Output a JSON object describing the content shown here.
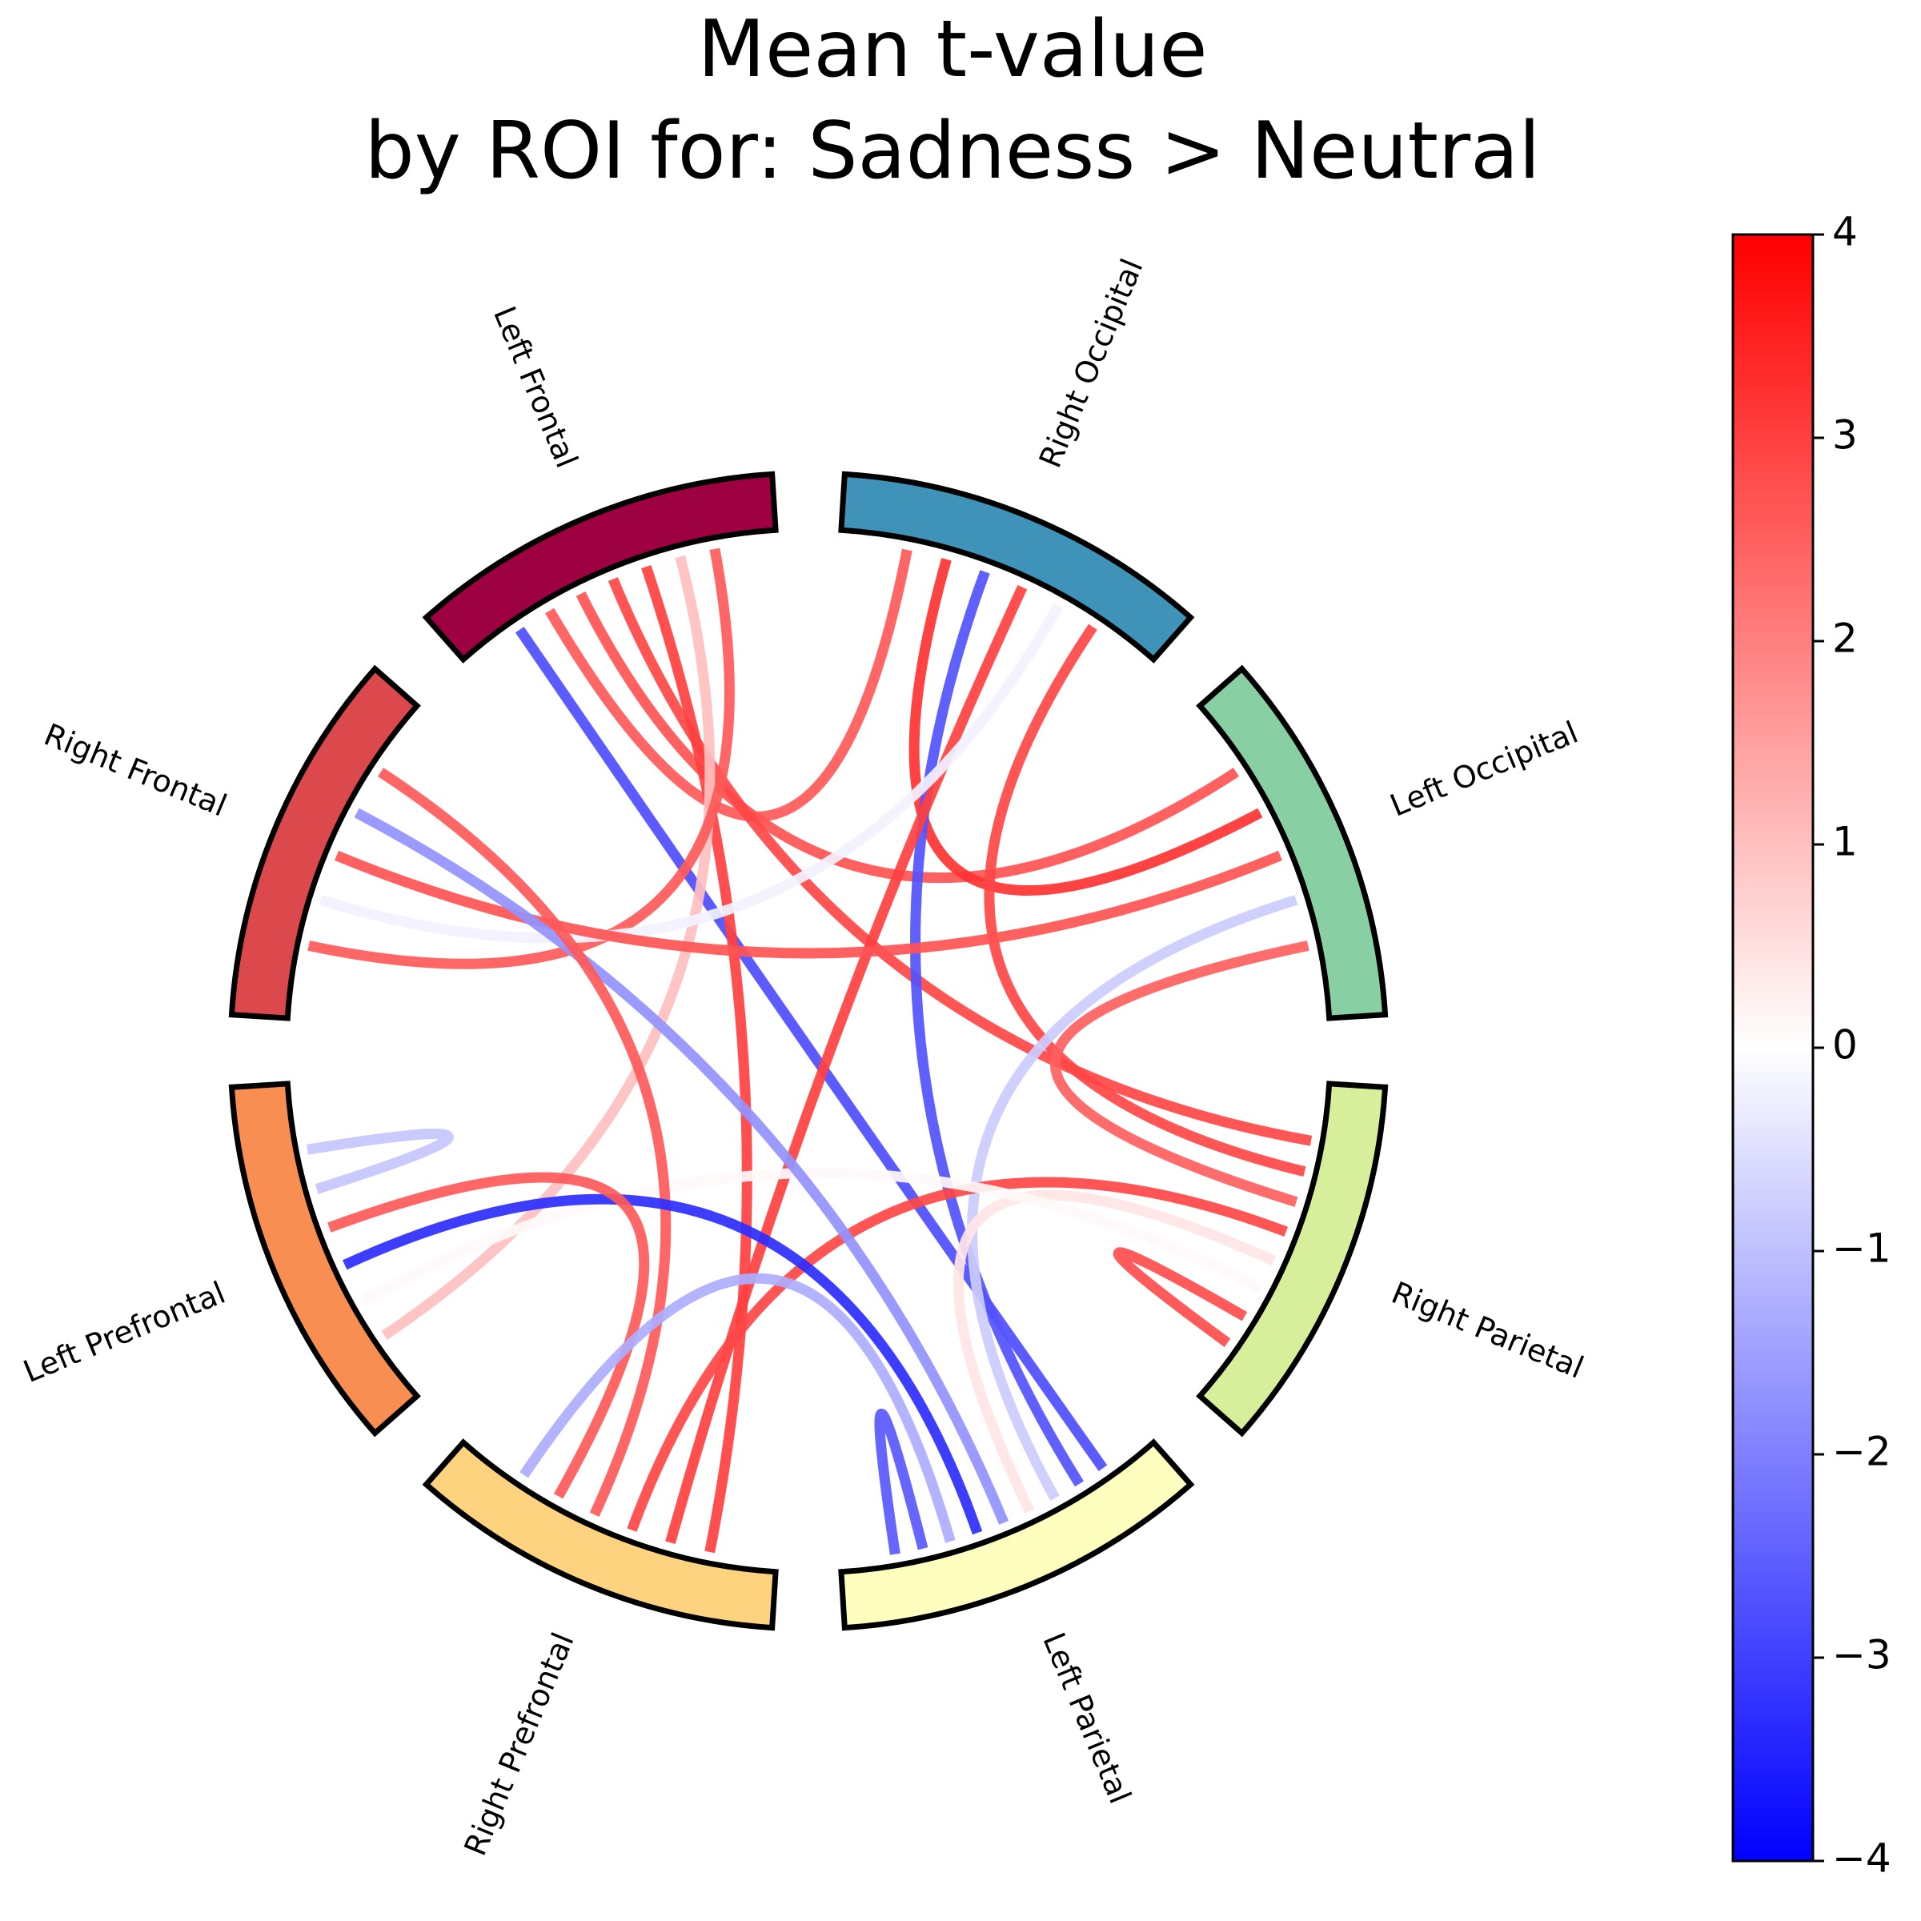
{
  "title": [
    "Mean t-value",
    "by ROI for: Sadness > Neutral"
  ],
  "chart_data": {
    "type": "chord",
    "title": "Mean t-value by ROI for: Sadness > Neutral",
    "nodes": [
      {
        "name": "Right Occipital",
        "color": "#3f93b9"
      },
      {
        "name": "Left Occipital",
        "color": "#88cfa4"
      },
      {
        "name": "Right Parietal",
        "color": "#d7ef9a"
      },
      {
        "name": "Left Parietal",
        "color": "#feffbe"
      },
      {
        "name": "Right Prefrontal",
        "color": "#fdd380"
      },
      {
        "name": "Left Prefrontal",
        "color": "#f88e52"
      },
      {
        "name": "Right Frontal",
        "color": "#dc494c"
      },
      {
        "name": "Left Frontal",
        "color": "#9e0142"
      }
    ],
    "links": [
      {
        "source": "Left Frontal",
        "target": "Left Parietal",
        "value": -2.8
      },
      {
        "source": "Left Frontal",
        "target": "Right Occipital",
        "value": 2.6
      },
      {
        "source": "Left Frontal",
        "target": "Left Occipital",
        "value": 2.7
      },
      {
        "source": "Left Frontal",
        "target": "Right Parietal",
        "value": 2.9
      },
      {
        "source": "Left Frontal",
        "target": "Right Prefrontal",
        "value": 3.0
      },
      {
        "source": "Left Frontal",
        "target": "Left Prefrontal",
        "value": 1.0
      },
      {
        "source": "Left Frontal",
        "target": "Right Frontal",
        "value": 2.6
      },
      {
        "source": "Right Occipital",
        "target": "Left Occipital",
        "value": 3.2
      },
      {
        "source": "Right Occipital",
        "target": "Left Parietal",
        "value": -2.7
      },
      {
        "source": "Right Occipital",
        "target": "Right Prefrontal",
        "value": 3.0
      },
      {
        "source": "Right Occipital",
        "target": "Right Frontal",
        "value": -0.2
      },
      {
        "source": "Right Occipital",
        "target": "Right Parietal",
        "value": 2.9
      },
      {
        "source": "Left Occipital",
        "target": "Right Frontal",
        "value": 2.7
      },
      {
        "source": "Left Occipital",
        "target": "Left Parietal",
        "value": -0.8
      },
      {
        "source": "Left Occipital",
        "target": "Right Parietal",
        "value": 2.5
      },
      {
        "source": "Right Parietal",
        "target": "Right Prefrontal",
        "value": 2.9
      },
      {
        "source": "Right Parietal",
        "target": "Left Parietal",
        "value": 0.4
      },
      {
        "source": "Right Parietal",
        "target": "Left Prefrontal",
        "value": 0.1
      },
      {
        "source": "Right Frontal",
        "target": "Left Parietal",
        "value": -1.7
      },
      {
        "source": "Right Frontal",
        "target": "Right Prefrontal",
        "value": 2.6
      },
      {
        "source": "Left Prefrontal",
        "target": "Left Parietal",
        "value": -3.3
      },
      {
        "source": "Left Prefrontal",
        "target": "Right Prefrontal",
        "value": 2.6
      },
      {
        "source": "Right Prefrontal",
        "target": "Left Parietal",
        "value": -1.3
      },
      {
        "source": "Left Prefrontal",
        "target": "Left Prefrontal",
        "value": -0.9
      },
      {
        "source": "Right Parietal",
        "target": "Right Parietal",
        "value": 2.8
      },
      {
        "source": "Left Parietal",
        "target": "Left Parietal",
        "value": -2.6
      }
    ],
    "colorbar": {
      "cmap": "bwr",
      "vmin": -4,
      "vmax": 4,
      "ticks": [
        4,
        3,
        2,
        1,
        0,
        -1,
        -2,
        -3,
        -4
      ],
      "tick_labels": [
        "4",
        "3",
        "2",
        "1",
        "0",
        "−1",
        "−2",
        "−3",
        "−4"
      ],
      "colors": {
        "low": "#0000ff",
        "mid": "#ffffff",
        "high": "#ff0000"
      }
    }
  }
}
